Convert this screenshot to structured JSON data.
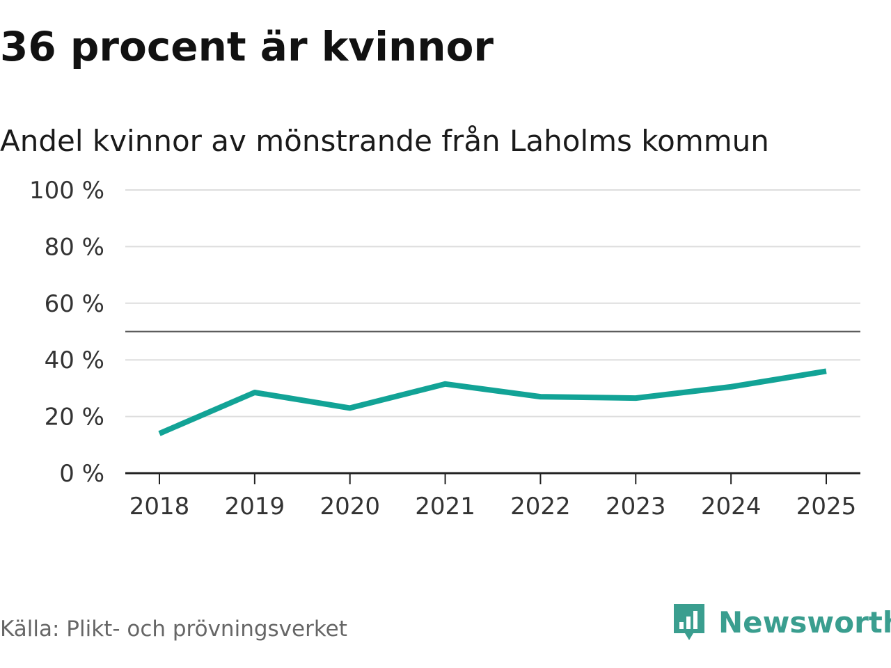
{
  "header": {
    "title": "36 procent är kvinnor"
  },
  "footer": {
    "source": "Källa: Plikt- och prövningsverket",
    "brand": "Newsworthy"
  },
  "colors": {
    "line": "#12a396",
    "grid": "#dddddd",
    "reference": "#555555",
    "brand": "#3a9e8f"
  },
  "chart_data": {
    "type": "line",
    "title": "Andel kvinnor av mönstrande från Laholms kommun",
    "xlabel": "",
    "ylabel": "",
    "categories": [
      "2018",
      "2019",
      "2020",
      "2021",
      "2022",
      "2023",
      "2024",
      "2025"
    ],
    "series": [
      {
        "name": "Andel kvinnor",
        "values": [
          14,
          28.5,
          23,
          31.5,
          27,
          26.5,
          30.5,
          36
        ]
      }
    ],
    "ylim": [
      0,
      100
    ],
    "yticks": [
      0,
      20,
      40,
      60,
      80,
      100
    ],
    "ytick_labels": [
      "0 %",
      "20 %",
      "40 %",
      "60 %",
      "80 %",
      "100 %"
    ],
    "reference_line": 50,
    "grid": true
  }
}
